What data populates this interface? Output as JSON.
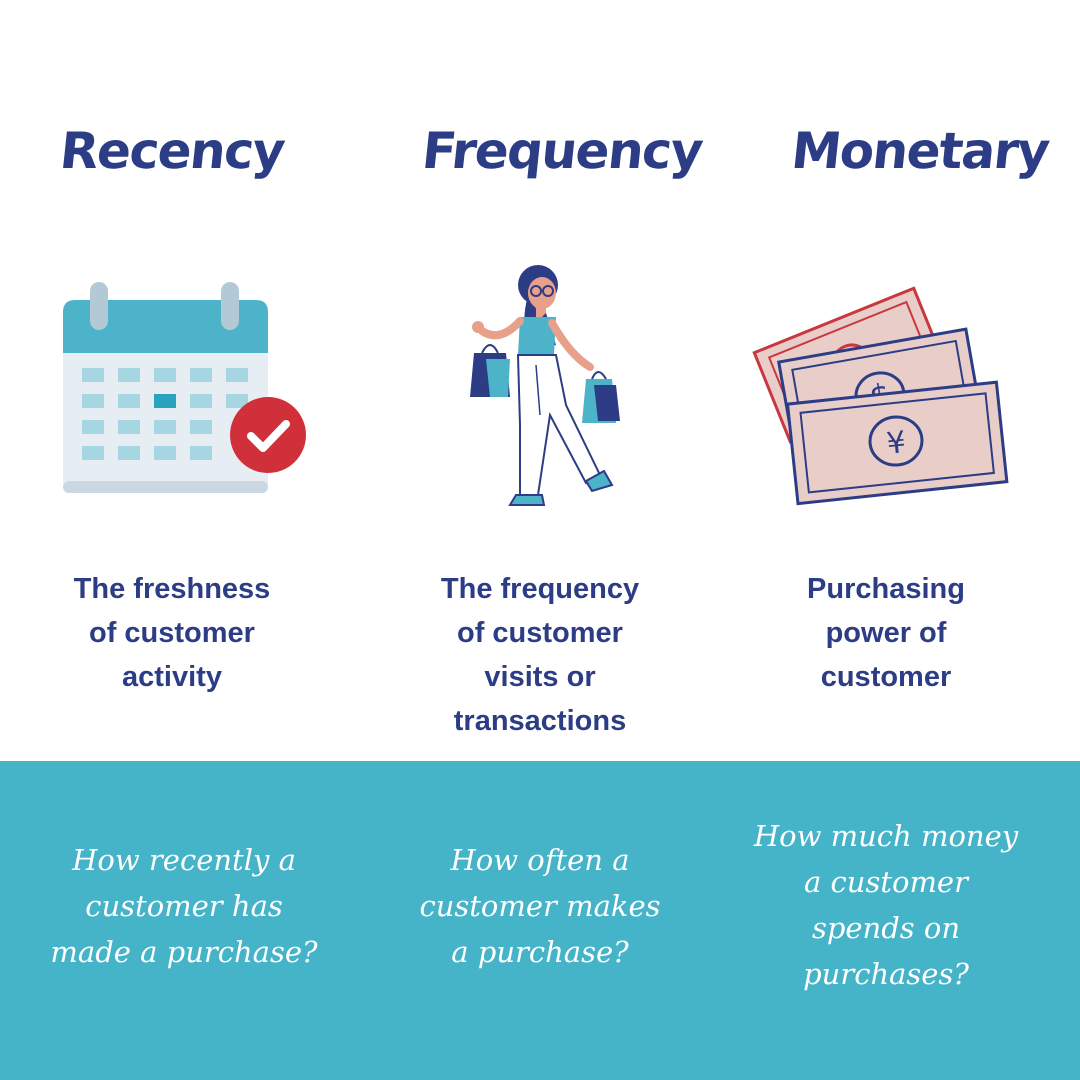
{
  "columns": [
    {
      "title": "Recency",
      "icon": "calendar-check-icon",
      "description": "The freshness\nof customer\nactivity",
      "question": "How recently a\ncustomer has\nmade a purchase?"
    },
    {
      "title": "Frequency",
      "icon": "shopper-illustration",
      "description": "The frequency\nof customer\nvisits or\ntransactions",
      "question": "How often a\ncustomer makes\na purchase?"
    },
    {
      "title": "Monetary",
      "icon": "money-bills-icon",
      "description": "Purchasing\npower of\ncustomer",
      "question": "How much money\na customer\nspends on\npurchases?"
    }
  ],
  "colors": {
    "heading": "#2c3d85",
    "band": "#45b3c8",
    "band_text": "#ffffff",
    "calendar_header": "#4db3c9",
    "check_badge": "#d0303a",
    "bills": "#e8cdc9"
  }
}
